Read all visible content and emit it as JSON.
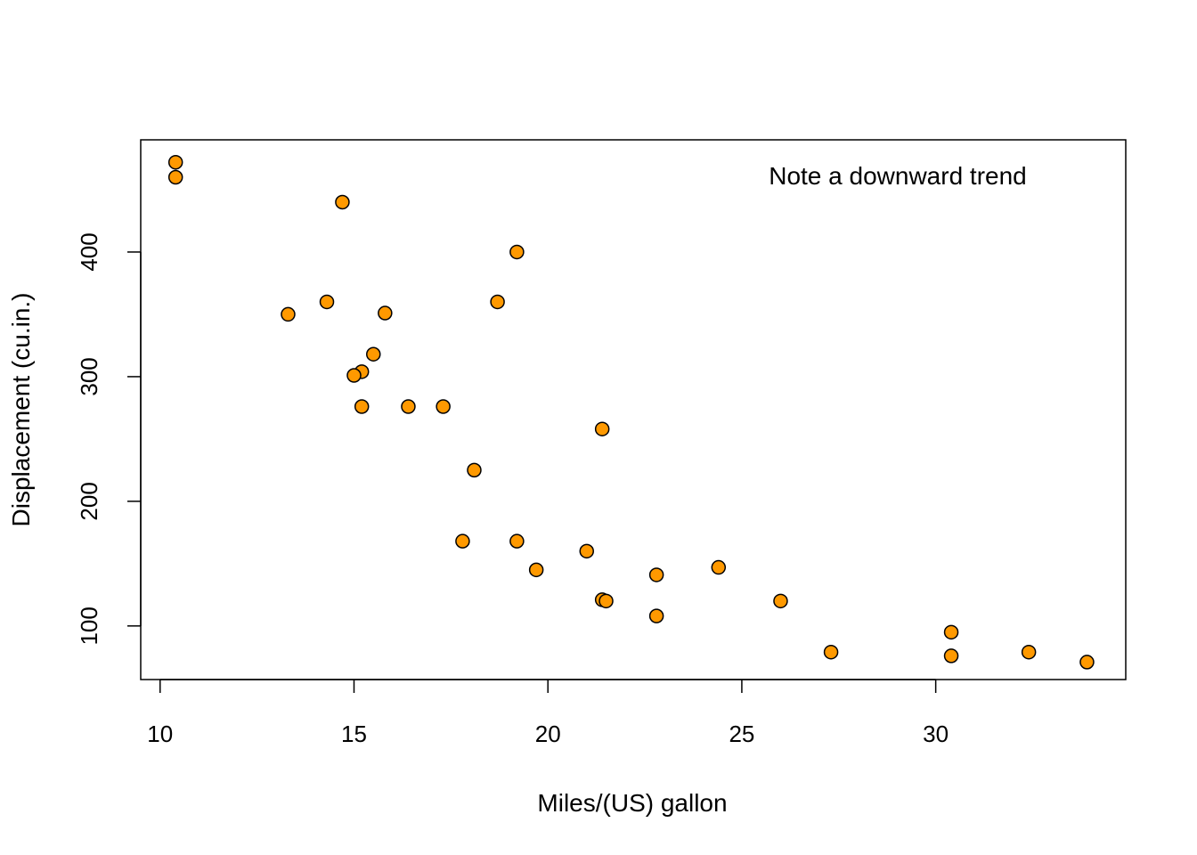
{
  "chart_data": {
    "type": "scatter",
    "title": "",
    "xlabel": "Miles/(US) gallon",
    "ylabel": "Displacement (cu.in.)",
    "xlim": [
      9.5,
      34.9
    ],
    "ylim": [
      57,
      490
    ],
    "xticks": [
      10,
      15,
      20,
      25,
      30
    ],
    "yticks": [
      100,
      200,
      300,
      400
    ],
    "grid": false,
    "legend": "none",
    "annotation": "Note a downward trend",
    "point_color": "#FF9900",
    "point_outline": "#000000",
    "points": [
      {
        "x": 10.4,
        "y": 472
      },
      {
        "x": 10.4,
        "y": 460
      },
      {
        "x": 14.7,
        "y": 440
      },
      {
        "x": 19.2,
        "y": 400
      },
      {
        "x": 13.3,
        "y": 350
      },
      {
        "x": 14.3,
        "y": 360
      },
      {
        "x": 15.8,
        "y": 351
      },
      {
        "x": 18.7,
        "y": 360
      },
      {
        "x": 15.5,
        "y": 318
      },
      {
        "x": 15.2,
        "y": 304
      },
      {
        "x": 15.0,
        "y": 301
      },
      {
        "x": 15.2,
        "y": 276
      },
      {
        "x": 16.4,
        "y": 276
      },
      {
        "x": 17.3,
        "y": 276
      },
      {
        "x": 21.4,
        "y": 258
      },
      {
        "x": 18.1,
        "y": 225
      },
      {
        "x": 17.8,
        "y": 168
      },
      {
        "x": 19.2,
        "y": 168
      },
      {
        "x": 21.0,
        "y": 160
      },
      {
        "x": 19.7,
        "y": 145
      },
      {
        "x": 22.8,
        "y": 141
      },
      {
        "x": 24.4,
        "y": 147
      },
      {
        "x": 21.4,
        "y": 121
      },
      {
        "x": 21.5,
        "y": 120
      },
      {
        "x": 26.0,
        "y": 120
      },
      {
        "x": 22.8,
        "y": 108
      },
      {
        "x": 30.4,
        "y": 95
      },
      {
        "x": 27.3,
        "y": 79
      },
      {
        "x": 32.4,
        "y": 79
      },
      {
        "x": 30.4,
        "y": 76
      },
      {
        "x": 33.9,
        "y": 71
      }
    ]
  }
}
